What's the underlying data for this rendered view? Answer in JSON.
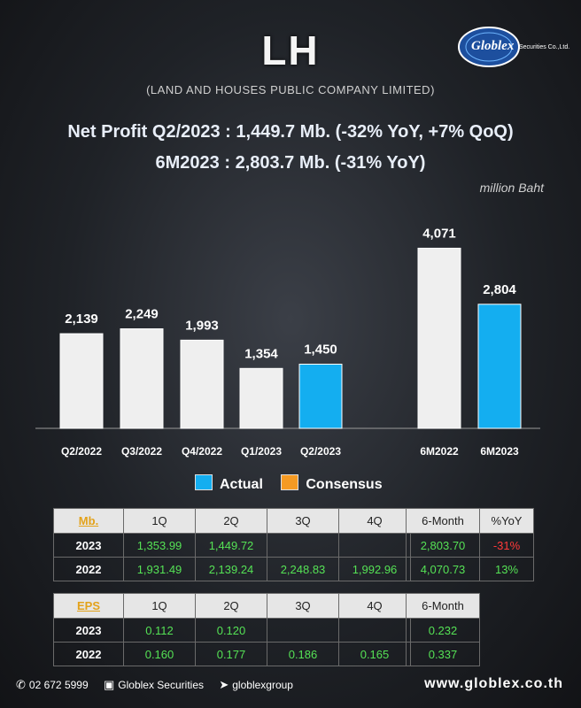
{
  "header": {
    "title": "LH",
    "company": "(LAND AND HOUSES PUBLIC COMPANY LIMITED)",
    "logo_text": "Globlex",
    "logo_sub": "Securities Co.,Ltd."
  },
  "headline": {
    "line1": "Net Profit  Q2/2023 : 1,449.7 Mb. (-32% YoY, +7% QoQ)",
    "line2": "6M2023 : 2,803.7 Mb. (-31% YoY)"
  },
  "unit": "million Baht",
  "legend": {
    "actual": "Actual",
    "consensus": "Consensus"
  },
  "colors": {
    "actual": "#14aef0",
    "base": "#efefef",
    "consensus": "#f59a23"
  },
  "chart_data": {
    "type": "bar",
    "categories": [
      "Q2/2022",
      "Q3/2022",
      "Q4/2022",
      "Q1/2023",
      "Q2/2023",
      "6M2022",
      "6M2023"
    ],
    "values": [
      2139,
      2249,
      1993,
      1354,
      1450,
      4071,
      2804
    ],
    "value_labels": [
      "2,139",
      "2,249",
      "1,993",
      "1,354",
      "1,450",
      "4,071",
      "2,804"
    ],
    "highlight": [
      false,
      false,
      false,
      false,
      true,
      false,
      true
    ],
    "title": "",
    "xlabel": "",
    "ylabel": "",
    "ylim": [
      0,
      4600
    ],
    "grid": false,
    "legend_position": "bottom"
  },
  "profit_table": {
    "corner": "Mb.",
    "headers": [
      "1Q",
      "2Q",
      "3Q",
      "4Q"
    ],
    "rows": [
      {
        "year": "2023",
        "cells": [
          "1,353.99",
          "1,449.72",
          "",
          ""
        ]
      },
      {
        "year": "2022",
        "cells": [
          "1,931.49",
          "2,139.24",
          "2,248.83",
          "1,992.96"
        ]
      }
    ]
  },
  "profit_summary": {
    "headers": [
      "6-Month",
      "%YoY"
    ],
    "rows": [
      {
        "six_month": "2,803.70",
        "yoy": "-31%"
      },
      {
        "six_month": "4,070.73",
        "yoy": "13%"
      }
    ]
  },
  "eps_table": {
    "corner": "EPS",
    "headers": [
      "1Q",
      "2Q",
      "3Q",
      "4Q"
    ],
    "rows": [
      {
        "year": "2023",
        "cells": [
          "0.112",
          "0.120",
          "",
          ""
        ]
      },
      {
        "year": "2022",
        "cells": [
          "0.160",
          "0.177",
          "0.186",
          "0.165"
        ]
      }
    ]
  },
  "eps_summary": {
    "headers": [
      "6-Month"
    ],
    "rows": [
      {
        "six_month": "0.232"
      },
      {
        "six_month": "0.337"
      }
    ]
  },
  "footer": {
    "phone": "02 672 5999",
    "facebook": "Globlex Securities",
    "telegram": "globlexgroup",
    "website": "www.globlex.co.th"
  }
}
